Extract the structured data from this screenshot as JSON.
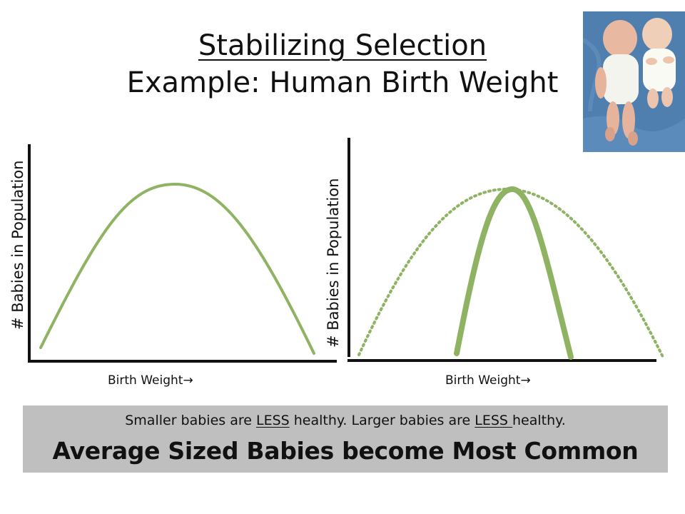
{
  "slide": {
    "title_line1": "Stabilizing Selection",
    "title_line2": "Example: Human Birth Weight"
  },
  "photo": {
    "subject": "two newborn babies lying side by side"
  },
  "charts": [
    {
      "id": "before",
      "ylabel": "# Babies in Population",
      "xlabel": "Birth Weight",
      "xlabel_arrow": "→"
    },
    {
      "id": "after",
      "ylabel": "# Babies in Population",
      "xlabel": "Birth Weight",
      "xlabel_arrow": "→"
    }
  ],
  "chart_data": [
    {
      "type": "line",
      "description": "broad bell-shaped distribution",
      "series": [
        {
          "style": "solid",
          "color": "#8db363",
          "shape": "wide-bell"
        }
      ]
    },
    {
      "type": "line",
      "description": "narrow distribution overlaid on original wide distribution",
      "series": [
        {
          "style": "dotted",
          "color": "#8db363",
          "shape": "wide-bell"
        },
        {
          "style": "solid-thick",
          "color": "#8db363",
          "shape": "narrow-bell"
        }
      ]
    }
  ],
  "summary": {
    "part1": "Smaller babies are ",
    "less1": "LESS",
    "part2": " healthy.  Larger babies are ",
    "less2": "LESS ",
    "part3": "healthy.",
    "headline": "Average Sized Babies become Most Common"
  },
  "colors": {
    "curve": "#8db363",
    "axis": "#111111",
    "summary_bg": "#bfbfbf"
  }
}
